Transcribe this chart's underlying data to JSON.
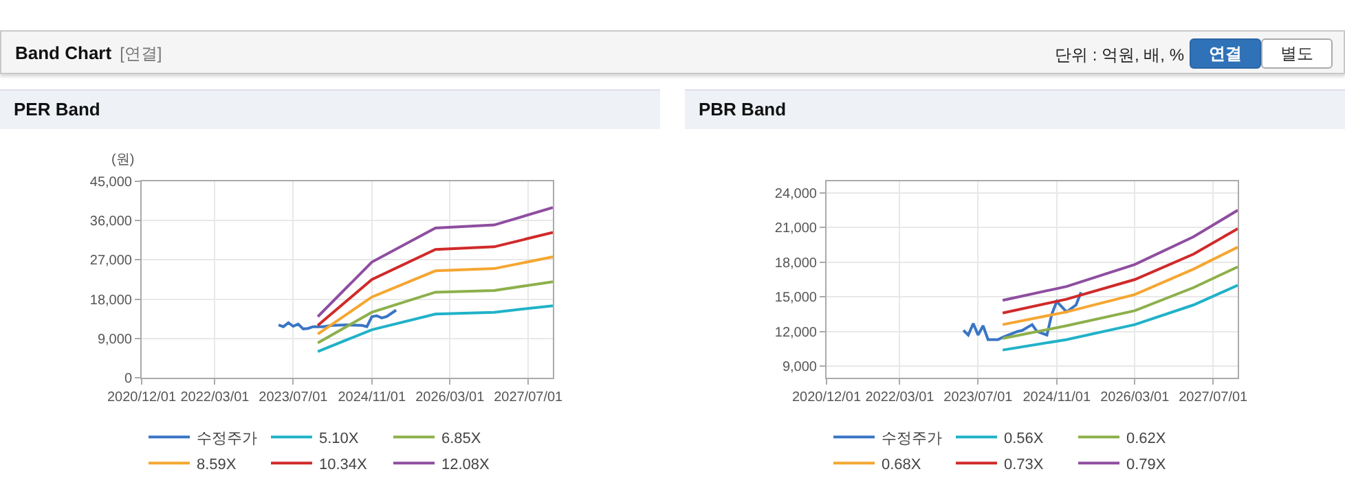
{
  "chart_data": [
    {
      "type": "line",
      "title": "PER Band",
      "ylabel": "(원)",
      "annotations": [
        "Band Chart",
        "[연결]",
        "단위 : 억원, 배, %",
        "연결",
        "별도"
      ],
      "xlim": [
        "2020-12-01",
        "2027-12-01"
      ],
      "xticks": [
        {
          "value": "2020-12-01",
          "label": "2020/12/01"
        },
        {
          "value": "2022-03-01",
          "label": "2022/03/01"
        },
        {
          "value": "2023-07-01",
          "label": "2023/07/01"
        },
        {
          "value": "2024-11-01",
          "label": "2024/11/01"
        },
        {
          "value": "2026-03-01",
          "label": "2026/03/01"
        },
        {
          "value": "2027-07-01",
          "label": "2027/07/01"
        }
      ],
      "ylim": [
        0,
        45000
      ],
      "yticks": [
        {
          "value": 0,
          "label": "0"
        },
        {
          "value": 9000,
          "label": "9,000"
        },
        {
          "value": 18000,
          "label": "18,000"
        },
        {
          "value": 27000,
          "label": "27,000"
        },
        {
          "value": 36000,
          "label": "36,000"
        },
        {
          "value": 45000,
          "label": "45,000"
        }
      ],
      "grid": true,
      "legend": "bottom",
      "marker": "none",
      "line_style": "solid",
      "series": [
        {
          "name": "수정주가",
          "color": "#3a75c4",
          "x": [
            "2023-04",
            "2023-05",
            "2023-06",
            "2023-07",
            "2023-08",
            "2023-09",
            "2023-10",
            "2023-11",
            "2024-01",
            "2024-03",
            "2024-06",
            "2024-09",
            "2024-10",
            "2024-11",
            "2024-12",
            "2025-01",
            "2025-02",
            "2025-04"
          ],
          "values": [
            12100,
            11700,
            12600,
            11800,
            12300,
            11200,
            11300,
            11700,
            11700,
            12000,
            12100,
            12000,
            11700,
            14000,
            14200,
            13700,
            14000,
            15500
          ]
        },
        {
          "name": "5.10X",
          "color": "#20b2c8",
          "x": [
            "2023-12",
            "2024-11",
            "2025-12",
            "2026-12",
            "2027-12"
          ],
          "values": [
            6000,
            11000,
            14600,
            15000,
            16500
          ]
        },
        {
          "name": "6.85X",
          "color": "#8db04c",
          "x": [
            "2023-12",
            "2024-11",
            "2025-12",
            "2026-12",
            "2027-12"
          ],
          "values": [
            8000,
            15000,
            19600,
            20000,
            22000
          ]
        },
        {
          "name": "8.59X",
          "color": "#f5a631",
          "x": [
            "2023-12",
            "2024-11",
            "2025-12",
            "2026-12",
            "2027-12"
          ],
          "values": [
            10000,
            18500,
            24500,
            25000,
            27700
          ]
        },
        {
          "name": "10.34X",
          "color": "#d02a2a",
          "x": [
            "2023-12",
            "2024-11",
            "2025-12",
            "2026-12",
            "2027-12"
          ],
          "values": [
            12000,
            22500,
            29400,
            30000,
            33300
          ]
        },
        {
          "name": "12.08X",
          "color": "#8e4ea0",
          "x": [
            "2023-12",
            "2024-11",
            "2025-12",
            "2026-12",
            "2027-12"
          ],
          "values": [
            14000,
            26500,
            34300,
            35000,
            39000
          ]
        }
      ]
    },
    {
      "type": "line",
      "title": "PBR Band",
      "xlim": [
        "2020-12-01",
        "2027-12-01"
      ],
      "xticks": [
        {
          "value": "2020-12-01",
          "label": "2020/12/01"
        },
        {
          "value": "2022-03-01",
          "label": "2022/03/01"
        },
        {
          "value": "2023-07-01",
          "label": "2023/07/01"
        },
        {
          "value": "2024-11-01",
          "label": "2024/11/01"
        },
        {
          "value": "2026-03-01",
          "label": "2026/03/01"
        },
        {
          "value": "2027-07-01",
          "label": "2027/07/01"
        }
      ],
      "ylim": [
        8000,
        25000
      ],
      "yticks": [
        {
          "value": 9000,
          "label": "9,000"
        },
        {
          "value": 12000,
          "label": "12,000"
        },
        {
          "value": 15000,
          "label": "15,000"
        },
        {
          "value": 18000,
          "label": "18,000"
        },
        {
          "value": 21000,
          "label": "21,000"
        },
        {
          "value": 24000,
          "label": "24,000"
        }
      ],
      "grid": true,
      "legend": "bottom",
      "marker": "none",
      "line_style": "solid",
      "series": [
        {
          "name": "수정주가",
          "color": "#3a75c4",
          "x": [
            "2023-04",
            "2023-05",
            "2023-06",
            "2023-07",
            "2023-08",
            "2023-09",
            "2023-11",
            "2023-12",
            "2024-03",
            "2024-04",
            "2024-06",
            "2024-07",
            "2024-09",
            "2024-10",
            "2024-11",
            "2025-01",
            "2025-03",
            "2025-04"
          ],
          "values": [
            12100,
            11700,
            12700,
            11700,
            12500,
            11300,
            11300,
            11500,
            12000,
            12100,
            12600,
            12000,
            11700,
            13500,
            14600,
            13700,
            14300,
            15400
          ]
        },
        {
          "name": "0.56X",
          "color": "#20b2c8",
          "x": [
            "2023-12",
            "2025-01",
            "2026-03",
            "2027-03",
            "2027-12"
          ],
          "values": [
            10400,
            11300,
            12600,
            14300,
            16000
          ]
        },
        {
          "name": "0.62X",
          "color": "#8db04c",
          "x": [
            "2023-12",
            "2025-01",
            "2026-03",
            "2027-03",
            "2027-12"
          ],
          "values": [
            11400,
            12500,
            13800,
            15800,
            17600
          ]
        },
        {
          "name": "0.68X",
          "color": "#f5a631",
          "x": [
            "2023-12",
            "2025-01",
            "2026-03",
            "2027-03",
            "2027-12"
          ],
          "values": [
            12600,
            13700,
            15200,
            17400,
            19300
          ]
        },
        {
          "name": "0.73X",
          "color": "#d02a2a",
          "x": [
            "2023-12",
            "2025-01",
            "2026-03",
            "2027-03",
            "2027-12"
          ],
          "values": [
            13600,
            14800,
            16500,
            18700,
            20900
          ]
        },
        {
          "name": "0.79X",
          "color": "#8e4ea0",
          "x": [
            "2023-12",
            "2025-01",
            "2026-03",
            "2027-03",
            "2027-12"
          ],
          "values": [
            14700,
            15900,
            17800,
            20200,
            22500
          ]
        }
      ]
    }
  ]
}
